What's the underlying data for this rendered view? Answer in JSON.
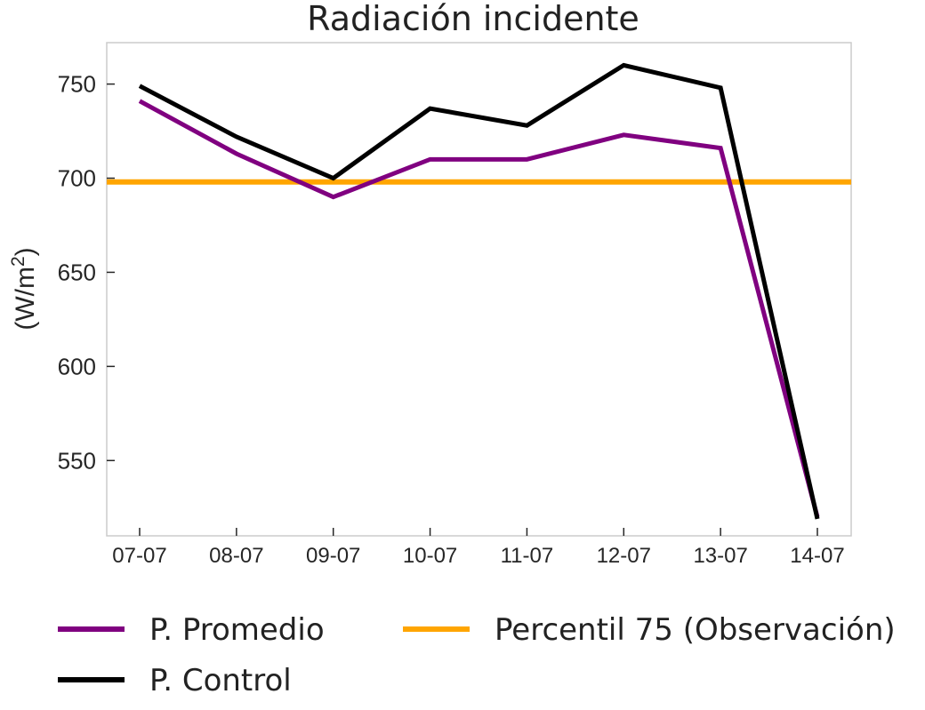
{
  "chart_data": {
    "type": "line",
    "title": "Radiación incidente",
    "ylabel_main": "(W/m",
    "ylabel_sup": "2",
    "ylabel_close": ")",
    "xlabel": "",
    "categories": [
      "07-07",
      "08-07",
      "09-07",
      "10-07",
      "11-07",
      "12-07",
      "13-07",
      "14-07"
    ],
    "ylim": [
      510,
      772
    ],
    "yticks": [
      550,
      600,
      650,
      700,
      750
    ],
    "grid": false,
    "legend_position": "bottom",
    "series": [
      {
        "name": "P. Promedio",
        "color": "#800080",
        "values": [
          741,
          713,
          690,
          710,
          710,
          723,
          716,
          520
        ]
      },
      {
        "name": "P. Control",
        "color": "#000000",
        "values": [
          749,
          722,
          700,
          737,
          728,
          760,
          748,
          519
        ]
      }
    ],
    "reference_lines": [
      {
        "name": "Percentil 75 (Observación)",
        "color": "#FFA500",
        "value": 698
      }
    ]
  }
}
